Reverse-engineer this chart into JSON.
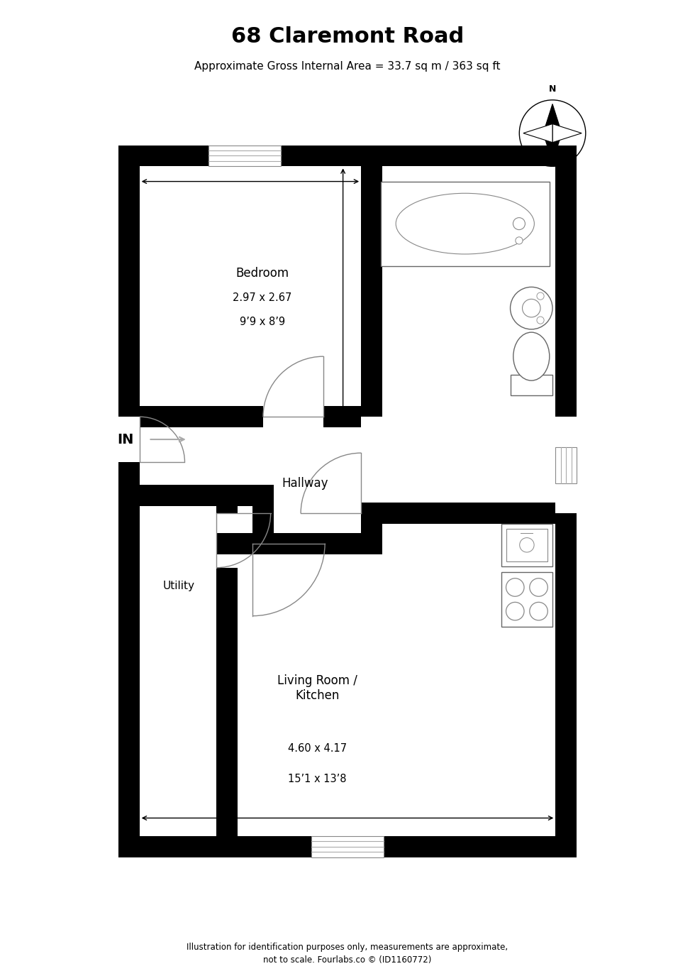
{
  "title": "68 Claremont Road",
  "subtitle": "Approximate Gross Internal Area = 33.7 sq m / 363 sq ft",
  "footer": "Illustration for identification purposes only, measurements are approximate,\nnot to scale. Fourlabs.co © (ID1160772)",
  "bedroom_label": "Bedroom",
  "bedroom_dims1": "2.97 x 2.67",
  "bedroom_dims2": "9’9 x 8’9",
  "hallway_label": "Hallway",
  "utility_label": "Utility",
  "living_label": "Living Room /\nKitchen",
  "living_dims1": "4.60 x 4.17",
  "living_dims2": "15’1 x 13’8",
  "wall_color": "#000000",
  "bg_color": "#ffffff"
}
